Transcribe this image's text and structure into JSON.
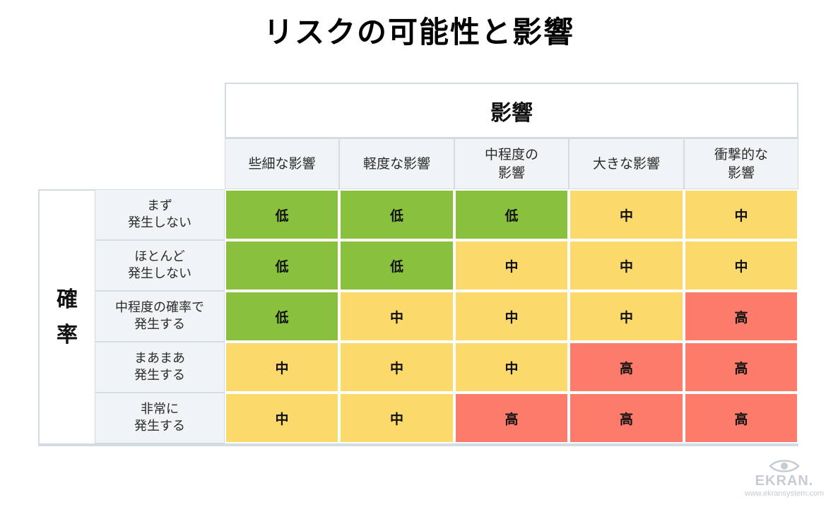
{
  "title": "リスクの可能性と影響",
  "impact_header": "影響",
  "impact_levels": [
    "些細な影響",
    "軽度な影響",
    "中程度の\n影響",
    "大きな影響",
    "衝撃的な\n影響"
  ],
  "probability_header": "確\n率",
  "probability_levels": [
    "まず\n発生しない",
    "ほとんど\n発生しない",
    "中程度の確率で\n発生する",
    "まあまあ\n発生する",
    "非常に\n発生する"
  ],
  "risk_labels": {
    "low": "低",
    "medium": "中",
    "high": "高"
  },
  "matrix": [
    [
      "low",
      "low",
      "low",
      "medium",
      "medium"
    ],
    [
      "low",
      "low",
      "medium",
      "medium",
      "medium"
    ],
    [
      "low",
      "medium",
      "medium",
      "medium",
      "high"
    ],
    [
      "medium",
      "medium",
      "medium",
      "high",
      "high"
    ],
    [
      "medium",
      "medium",
      "high",
      "high",
      "high"
    ]
  ],
  "colors": {
    "low": "#89c13f",
    "medium": "#fbd96b",
    "high": "#fc7b6a",
    "border": "#d3dbe3"
  },
  "logo": {
    "name": "EKRAN.",
    "url": "www.ekransystem.com",
    "icon": "eye-icon"
  }
}
